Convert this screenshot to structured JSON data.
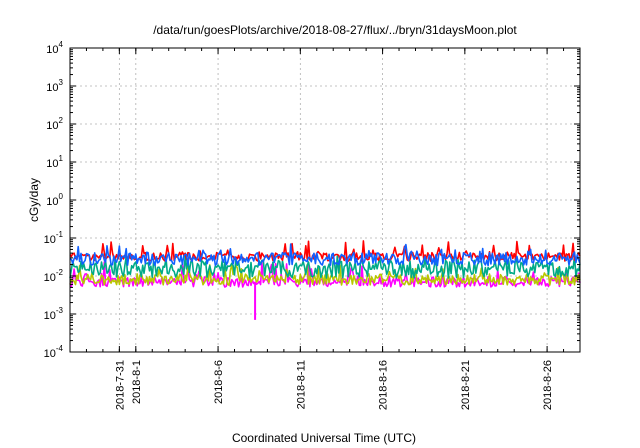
{
  "chart_data": {
    "type": "line",
    "title": "/data/run/goesPlots/archive/2018-08-27/flux/../bryn/31daysMoon.plot",
    "xlabel": "Coordinated Universal Time (UTC)",
    "ylabel": "cGy/day",
    "yscale": "log",
    "grid": true,
    "xlim": [
      "2018-07-28",
      "2018-08-28"
    ],
    "ylim": [
      0.0001,
      10000
    ],
    "x_ticks": [
      "2018-7-31",
      "2018-8-1",
      "2018-8-6",
      "2018-8-11",
      "2018-8-16",
      "2018-8-21",
      "2018-8-26"
    ],
    "y_ticks": [
      {
        "base": "10",
        "exp": "-4",
        "value": 0.0001
      },
      {
        "base": "10",
        "exp": "-3",
        "value": 0.001
      },
      {
        "base": "10",
        "exp": "-2",
        "value": 0.01
      },
      {
        "base": "10",
        "exp": "-1",
        "value": 0.1
      },
      {
        "base": "10",
        "exp": "0",
        "value": 1
      },
      {
        "base": "10",
        "exp": "1",
        "value": 10
      },
      {
        "base": "10",
        "exp": "2",
        "value": 100
      },
      {
        "base": "10",
        "exp": "3",
        "value": 1000
      },
      {
        "base": "10",
        "exp": "4",
        "value": 10000
      }
    ],
    "series": [
      {
        "color": "#ff0000",
        "typical": 0.032,
        "low": 0.022,
        "high": 0.085
      },
      {
        "color": "#1060ff",
        "typical": 0.028,
        "low": 0.016,
        "high": 0.07
      },
      {
        "color": "#00aa88",
        "typical": 0.015,
        "low": 0.007,
        "high": 0.035
      },
      {
        "color": "#b8c800",
        "typical": 0.008,
        "low": 0.005,
        "high": 0.02
      },
      {
        "color": "#ff00ff",
        "typical": 0.007,
        "low": 0.0045,
        "high": 0.025
      }
    ],
    "annotation": {
      "x": "2018-08-08T06:00",
      "y": 0.0007,
      "color": "#ff00ff"
    }
  }
}
